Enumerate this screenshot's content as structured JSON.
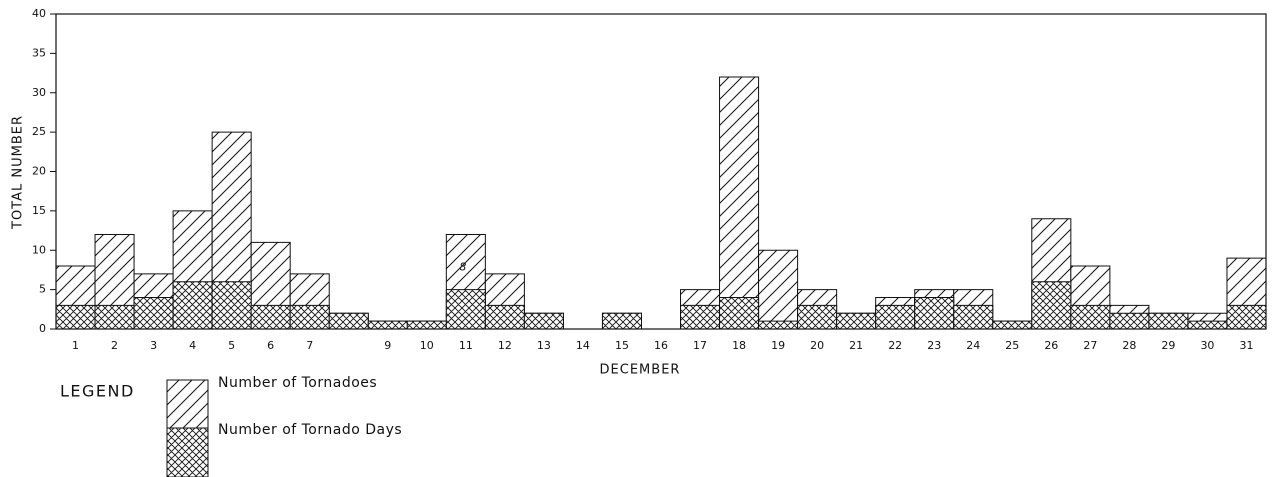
{
  "chart_data": {
    "type": "bar",
    "y_label": "TOTAL NUMBER",
    "x_label": "DECEMBER",
    "legend_title": "LEGEND",
    "annotations": [
      "8"
    ],
    "categories": [
      "1",
      "2",
      "3",
      "4",
      "5",
      "6",
      "7",
      null,
      "9",
      "10",
      "11",
      "12",
      "13",
      "14",
      "15",
      "16",
      "17",
      "18",
      "19",
      "20",
      "21",
      "22",
      "23",
      "24",
      "25",
      "26",
      "27",
      "28",
      "29",
      "30",
      "31"
    ],
    "series": [
      {
        "name": "Number of Tornadoes",
        "color": "#111111",
        "pattern": "diagonal",
        "values": [
          8,
          12,
          7,
          15,
          25,
          11,
          7,
          2,
          1,
          1,
          12,
          7,
          2,
          0,
          2,
          0,
          5,
          32,
          10,
          5,
          2,
          4,
          5,
          5,
          1,
          14,
          8,
          3,
          2,
          2,
          9
        ]
      },
      {
        "name": "Number of Tornado Days",
        "color": "#111111",
        "pattern": "crosshatch",
        "values": [
          3,
          3,
          4,
          6,
          6,
          3,
          3,
          2,
          1,
          1,
          5,
          3,
          2,
          0,
          2,
          0,
          3,
          4,
          1,
          3,
          2,
          3,
          4,
          3,
          1,
          6,
          3,
          2,
          2,
          1,
          3
        ]
      }
    ],
    "ylim": [
      0,
      40
    ],
    "yticks": [
      0,
      5,
      10,
      15,
      20,
      25,
      30,
      35,
      40
    ]
  }
}
